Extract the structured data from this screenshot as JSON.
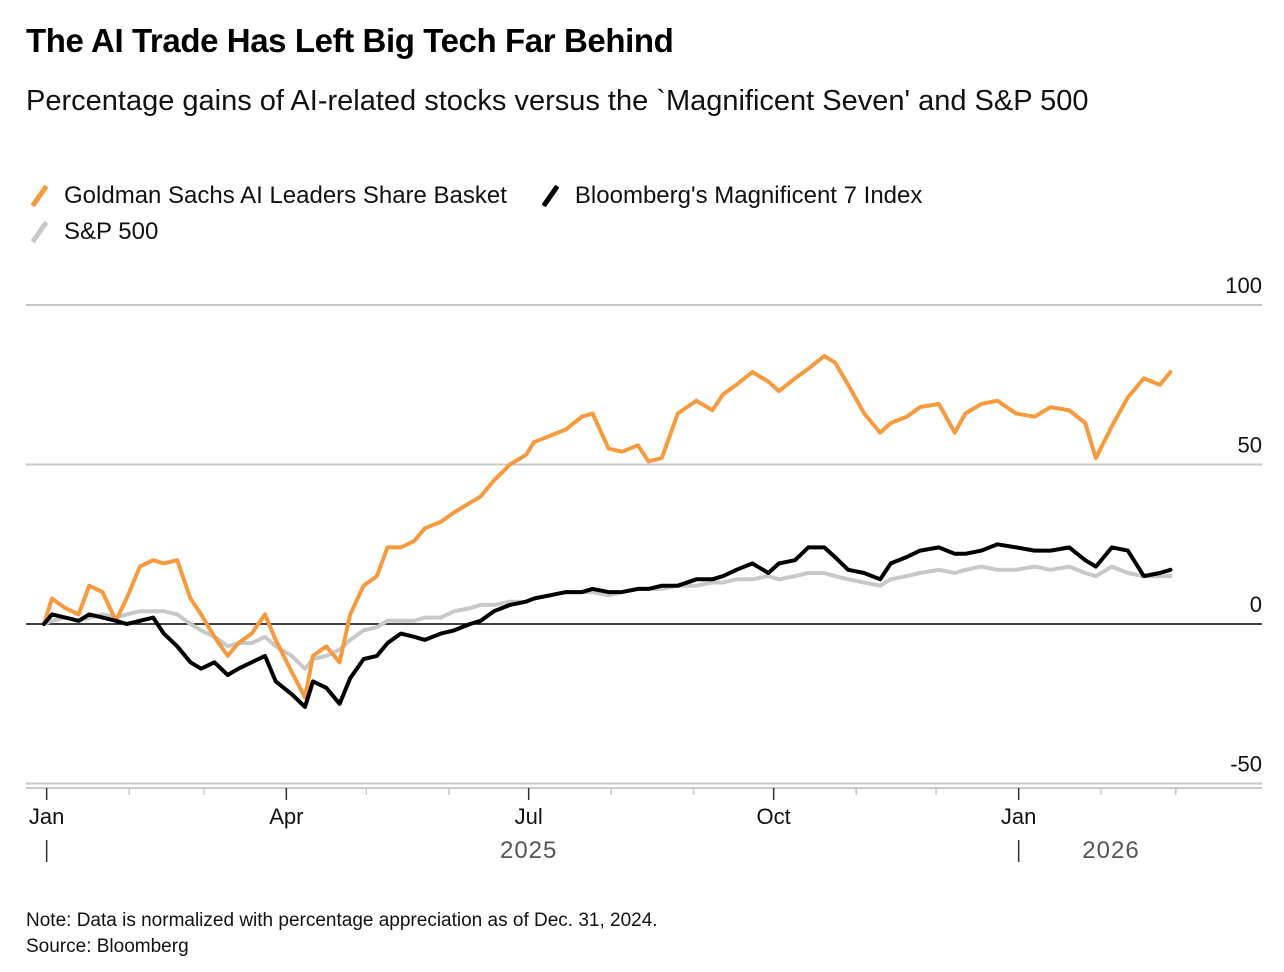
{
  "header": {
    "title": "The AI Trade Has Left Big Tech Far Behind",
    "subtitle": "Percentage gains of AI-related stocks versus the `Magnificent Seven' and S&P 500"
  },
  "legend": [
    {
      "label": "Goldman Sachs AI Leaders Share Basket",
      "color": "#f79a3e"
    },
    {
      "label": "Bloomberg's Magnificent 7 Index",
      "color": "#000000"
    },
    {
      "label": "S&P 500",
      "color": "#c8c8c8"
    }
  ],
  "footer": {
    "note": "Note: Data is normalized with percentage appreciation as of Dec. 31, 2024.",
    "source": "Source: Bloomberg"
  },
  "chart_data": {
    "type": "line",
    "title": "The AI Trade Has Left Big Tech Far Behind",
    "subtitle": "Percentage gains of AI-related stocks versus the `Magnificent Seven' and S&P 500",
    "xlabel": "",
    "ylabel": "",
    "ylim": [
      -50,
      100
    ],
    "yticks": [
      100,
      50,
      0,
      -50
    ],
    "ytick_labels": [
      "100",
      "50",
      "0",
      "-50"
    ],
    "y_axis_position": "right",
    "grid": true,
    "legend_position": "top-left",
    "xlim": [
      "2024-12-31",
      "2026-02-28"
    ],
    "xtick_labels": [
      {
        "label": "Jan",
        "date": "2025-01-01"
      },
      {
        "label": "Apr",
        "date": "2025-04-01"
      },
      {
        "label": "Jul",
        "date": "2025-07-01"
      },
      {
        "label": "Oct",
        "date": "2025-10-01"
      },
      {
        "label": "Jan",
        "date": "2026-01-01"
      }
    ],
    "year_labels": [
      {
        "label": "2025",
        "date": "2025-07-01"
      },
      {
        "label": "2026",
        "date": "2026-02-01"
      }
    ],
    "x": [
      "2024-12-31",
      "2025-01-03",
      "2025-01-08",
      "2025-01-13",
      "2025-01-17",
      "2025-01-22",
      "2025-01-27",
      "2025-01-31",
      "2025-02-05",
      "2025-02-10",
      "2025-02-14",
      "2025-02-19",
      "2025-02-24",
      "2025-02-28",
      "2025-03-05",
      "2025-03-10",
      "2025-03-14",
      "2025-03-19",
      "2025-03-24",
      "2025-03-28",
      "2025-04-03",
      "2025-04-08",
      "2025-04-11",
      "2025-04-16",
      "2025-04-21",
      "2025-04-25",
      "2025-04-30",
      "2025-05-05",
      "2025-05-09",
      "2025-05-14",
      "2025-05-19",
      "2025-05-23",
      "2025-05-29",
      "2025-06-03",
      "2025-06-09",
      "2025-06-13",
      "2025-06-18",
      "2025-06-24",
      "2025-06-30",
      "2025-07-03",
      "2025-07-09",
      "2025-07-15",
      "2025-07-21",
      "2025-07-25",
      "2025-07-31",
      "2025-08-05",
      "2025-08-11",
      "2025-08-15",
      "2025-08-20",
      "2025-08-26",
      "2025-09-02",
      "2025-09-08",
      "2025-09-12",
      "2025-09-17",
      "2025-09-23",
      "2025-09-29",
      "2025-10-03",
      "2025-10-09",
      "2025-10-14",
      "2025-10-20",
      "2025-10-24",
      "2025-10-29",
      "2025-11-04",
      "2025-11-10",
      "2025-11-14",
      "2025-11-20",
      "2025-11-25",
      "2025-12-02",
      "2025-12-08",
      "2025-12-12",
      "2025-12-18",
      "2025-12-24",
      "2025-12-31",
      "2026-01-07",
      "2026-01-13",
      "2026-01-20",
      "2026-01-26",
      "2026-01-30",
      "2026-02-05",
      "2026-02-11",
      "2026-02-17",
      "2026-02-23",
      "2026-02-27"
    ],
    "series": [
      {
        "name": "Goldman Sachs AI Leaders Share Basket",
        "color": "#f79a3e",
        "values": [
          0,
          8,
          5,
          3,
          12,
          10,
          1,
          8,
          18,
          20,
          19,
          20,
          8,
          3,
          -4,
          -10,
          -6,
          -3,
          3,
          -5,
          -15,
          -23,
          -10,
          -7,
          -12,
          3,
          12,
          15,
          24,
          24,
          26,
          30,
          32,
          35,
          38,
          40,
          45,
          50,
          53,
          57,
          59,
          61,
          65,
          66,
          55,
          54,
          56,
          51,
          52,
          66,
          70,
          67,
          72,
          75,
          79,
          76,
          73,
          77,
          80,
          84,
          82,
          75,
          66,
          60,
          63,
          65,
          68,
          69,
          60,
          66,
          69,
          70,
          66,
          65,
          68,
          67,
          63,
          52,
          62,
          71,
          77,
          75,
          79
        ]
      },
      {
        "name": "Bloomberg's Magnificent 7 Index",
        "color": "#000000",
        "values": [
          0,
          3,
          2,
          1,
          3,
          2,
          1,
          0,
          1,
          2,
          -3,
          -7,
          -12,
          -14,
          -12,
          -16,
          -14,
          -12,
          -10,
          -18,
          -22,
          -26,
          -18,
          -20,
          -25,
          -17,
          -11,
          -10,
          -6,
          -3,
          -4,
          -5,
          -3,
          -2,
          0,
          1,
          4,
          6,
          7,
          8,
          9,
          10,
          10,
          11,
          10,
          10,
          11,
          11,
          12,
          12,
          14,
          14,
          15,
          17,
          19,
          16,
          19,
          20,
          24,
          24,
          21,
          17,
          16,
          14,
          19,
          21,
          23,
          24,
          22,
          22,
          23,
          25,
          24,
          23,
          23,
          24,
          20,
          18,
          24,
          23,
          15,
          16,
          17
        ]
      },
      {
        "name": "S&P 500",
        "color": "#c8c8c8",
        "values": [
          0,
          1,
          2,
          1,
          2,
          3,
          2,
          3,
          4,
          4,
          4,
          3,
          0,
          -2,
          -4,
          -7,
          -6,
          -6,
          -4,
          -7,
          -10,
          -14,
          -11,
          -10,
          -8,
          -5,
          -2,
          -1,
          1,
          1,
          1,
          2,
          2,
          4,
          5,
          6,
          6,
          7,
          7,
          8,
          9,
          10,
          10,
          10,
          9,
          10,
          11,
          11,
          11,
          12,
          12,
          13,
          13,
          14,
          14,
          15,
          14,
          15,
          16,
          16,
          15,
          14,
          13,
          12,
          14,
          15,
          16,
          17,
          16,
          17,
          18,
          17,
          17,
          18,
          17,
          18,
          16,
          15,
          18,
          16,
          15,
          15,
          15
        ]
      }
    ]
  }
}
